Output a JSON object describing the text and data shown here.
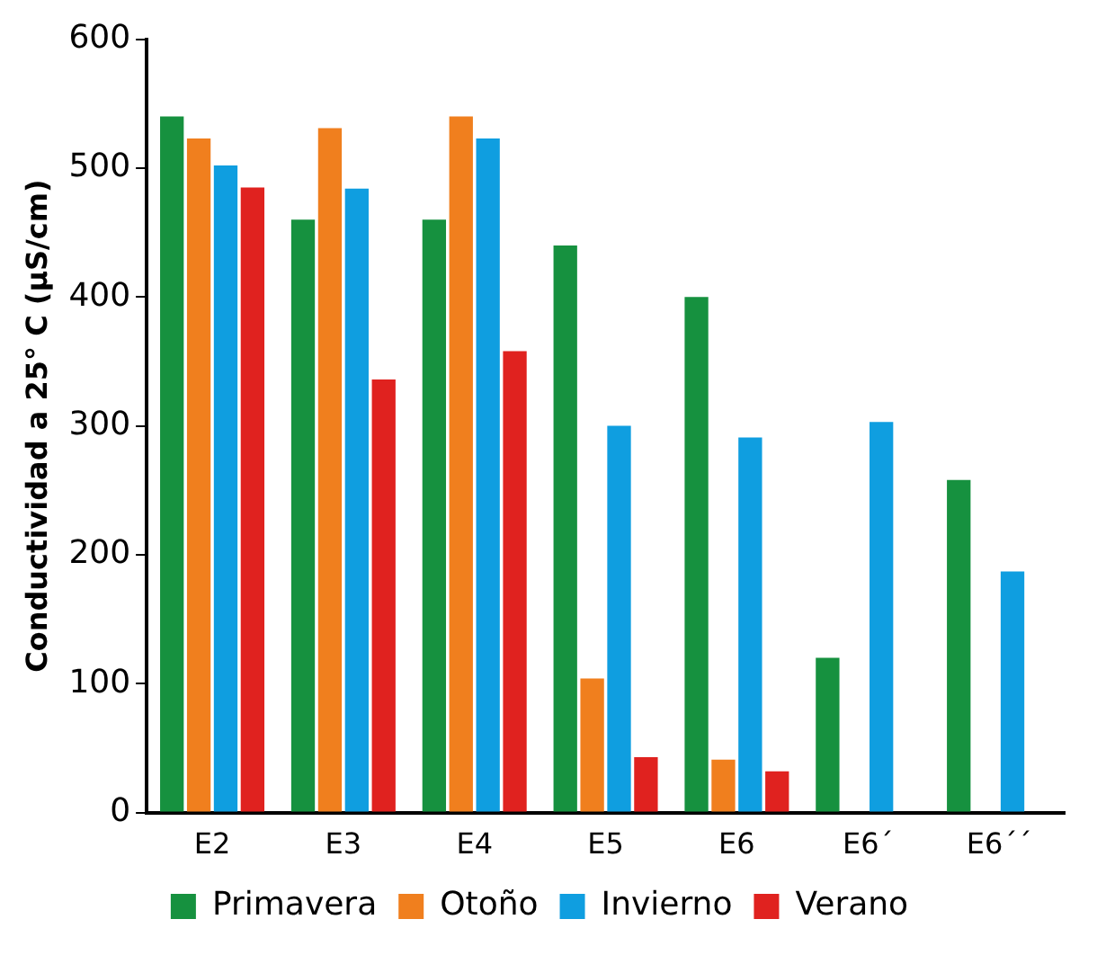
{
  "chart_data": {
    "type": "bar",
    "ylabel": "Conductividad a 25° C (µS/cm)",
    "categories": [
      "E2",
      "E3",
      "E4",
      "E5",
      "E6",
      "E6´",
      "E6´´"
    ],
    "series": [
      {
        "name": "Primavera",
        "color": "#16913f",
        "values": [
          540,
          460,
          460,
          440,
          400,
          120,
          258
        ]
      },
      {
        "name": "Otoño",
        "color": "#f07f1e",
        "values": [
          523,
          531,
          540,
          104,
          41,
          null,
          null
        ]
      },
      {
        "name": "Invierno",
        "color": "#0f9ee0",
        "values": [
          502,
          484,
          523,
          300,
          291,
          303,
          187
        ]
      },
      {
        "name": "Verano",
        "color": "#e0221f",
        "values": [
          485,
          336,
          358,
          43,
          32,
          null,
          null
        ]
      }
    ],
    "ylim": [
      0,
      600
    ],
    "yticks": [
      0,
      100,
      200,
      300,
      400,
      500,
      600
    ],
    "grid": false,
    "legend": "bottom"
  }
}
